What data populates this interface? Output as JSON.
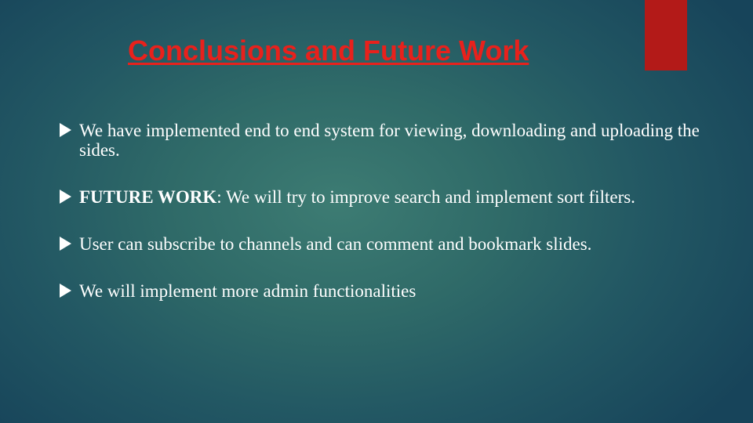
{
  "slide": {
    "title": "Conclusions and Future Work",
    "title_color": "#e8211c",
    "accent_color": "#b31a18",
    "bullet_icon": "triangle-right-icon",
    "bullet_color": "#ffffff",
    "bullets": [
      {
        "lead": "",
        "text": "We have implemented end to end system for viewing, downloading and uploading the sides."
      },
      {
        "lead": "FUTURE WORK",
        "text": ": We will try to improve search and implement sort filters."
      },
      {
        "lead": "",
        "text": "User can subscribe to channels and can comment and bookmark slides."
      },
      {
        "lead": "",
        "text": "We will implement more admin functionalities"
      }
    ]
  }
}
